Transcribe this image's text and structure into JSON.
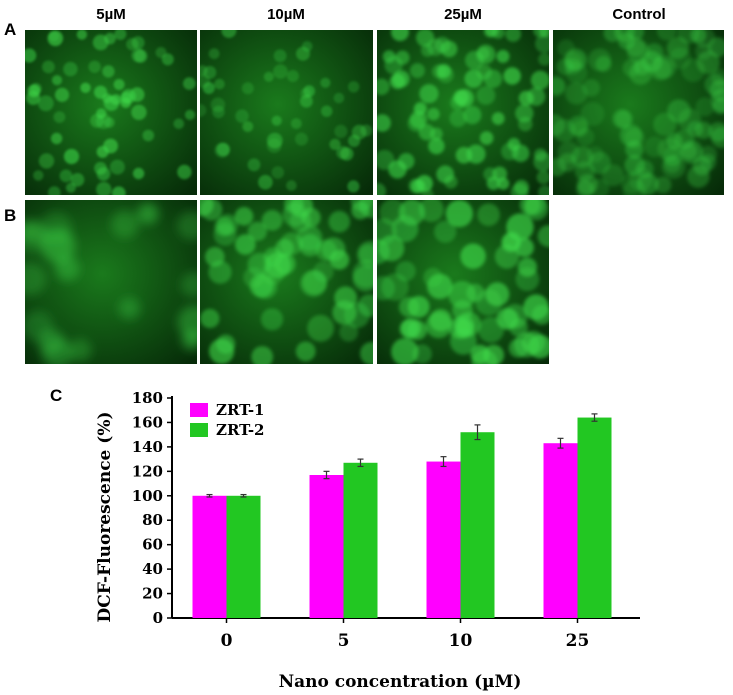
{
  "figure": {
    "panel_labels": [
      "A",
      "B",
      "C"
    ],
    "column_labels": [
      "5µM",
      "10µM",
      "25µM",
      "Control"
    ],
    "colors": {
      "tile_dark": "#062a08",
      "tile_mid": "#1a7a1c",
      "cell_bright": "#3fd94a"
    }
  },
  "chart_data": {
    "type": "bar",
    "categories": [
      "0",
      "5",
      "10",
      "25"
    ],
    "series": [
      {
        "name": "ZRT-1",
        "color": "#ff00ff",
        "values": [
          100,
          117,
          128,
          143
        ],
        "errors": [
          1,
          3,
          4,
          4
        ]
      },
      {
        "name": "ZRT-2",
        "color": "#22c722",
        "values": [
          100,
          127,
          152,
          164
        ],
        "errors": [
          1,
          3,
          6,
          3
        ]
      }
    ],
    "title": "",
    "xlabel": "Nano concentration (µM)",
    "ylabel": "DCF-Fluorescence (%)",
    "ylim": [
      0,
      180
    ],
    "yticks": [
      "0",
      "20",
      "40",
      "60",
      "80",
      "100",
      "120",
      "140",
      "160",
      "180"
    ],
    "legend_position": "top-left",
    "grid": false
  }
}
